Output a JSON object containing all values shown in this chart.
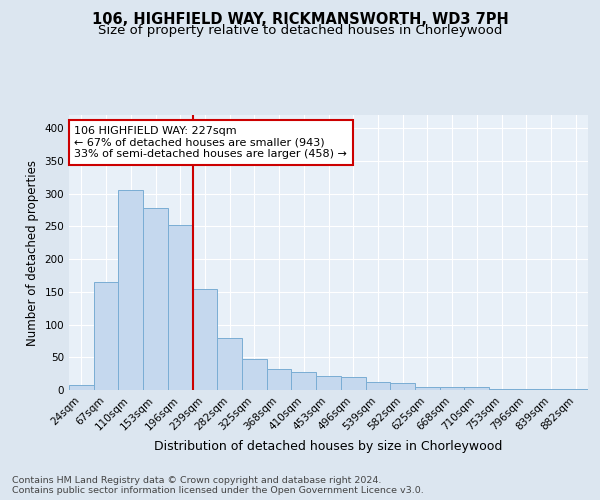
{
  "title": "106, HIGHFIELD WAY, RICKMANSWORTH, WD3 7PH",
  "subtitle": "Size of property relative to detached houses in Chorleywood",
  "xlabel": "Distribution of detached houses by size in Chorleywood",
  "ylabel": "Number of detached properties",
  "categories": [
    "24sqm",
    "67sqm",
    "110sqm",
    "153sqm",
    "196sqm",
    "239sqm",
    "282sqm",
    "325sqm",
    "368sqm",
    "410sqm",
    "453sqm",
    "496sqm",
    "539sqm",
    "582sqm",
    "625sqm",
    "668sqm",
    "710sqm",
    "753sqm",
    "796sqm",
    "839sqm",
    "882sqm"
  ],
  "values": [
    8,
    165,
    305,
    278,
    252,
    155,
    80,
    48,
    32,
    28,
    22,
    20,
    12,
    10,
    4,
    5,
    4,
    2,
    2,
    2,
    1
  ],
  "bar_color": "#c5d8ee",
  "bar_edge_color": "#7aadd4",
  "property_line_x": 4.5,
  "property_size": "227sqm",
  "pct_smaller": 67,
  "n_smaller": 943,
  "pct_larger_semi": 33,
  "n_larger_semi": 458,
  "annotation_box_color": "#ffffff",
  "annotation_box_edge": "#cc0000",
  "line_color": "#cc0000",
  "ylim": [
    0,
    420
  ],
  "yticks": [
    0,
    50,
    100,
    150,
    200,
    250,
    300,
    350,
    400
  ],
  "bg_color": "#dce6f0",
  "plot_bg_color": "#e8f0f8",
  "footer": "Contains HM Land Registry data © Crown copyright and database right 2024.\nContains public sector information licensed under the Open Government Licence v3.0.",
  "title_fontsize": 10.5,
  "subtitle_fontsize": 9.5,
  "xlabel_fontsize": 9,
  "ylabel_fontsize": 8.5,
  "tick_fontsize": 7.5,
  "footer_fontsize": 6.8,
  "ann_fontsize": 8
}
